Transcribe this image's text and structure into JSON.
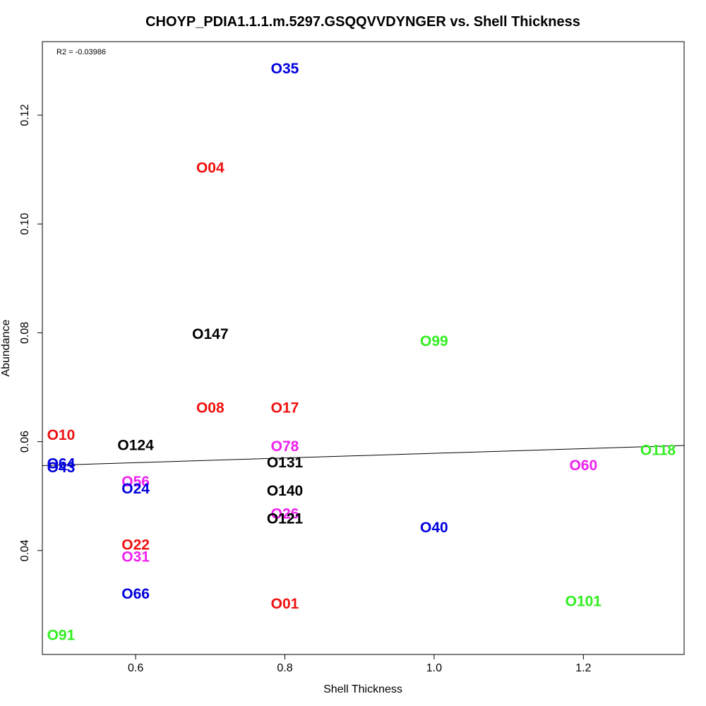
{
  "chart_data": {
    "type": "scatter",
    "title": "CHOYP_PDIA1.1.1.m.5297.GSQQVVDYNGER vs. Shell Thickness",
    "xlabel": "Shell Thickness",
    "ylabel": "Abundance",
    "annotation": "R2 = -0.03986",
    "xlim": [
      0.475,
      1.335
    ],
    "ylim": [
      0.0209,
      0.1335
    ],
    "xticks": [
      0.6,
      0.8,
      1.0,
      1.2
    ],
    "xtick_labels": [
      "0.6",
      "0.8",
      "1.0",
      "1.2"
    ],
    "yticks": [
      0.04,
      0.06,
      0.08,
      0.1,
      0.12
    ],
    "ytick_labels": [
      "0.04",
      "0.06",
      "0.08",
      "0.10",
      "0.12"
    ],
    "grid": false,
    "regression_line": {
      "x": [
        0.475,
        1.335
      ],
      "y": [
        0.0556,
        0.0593
      ]
    },
    "points": [
      {
        "label": "O35",
        "x": 0.8,
        "y": 0.1285,
        "color": "#0000dd"
      },
      {
        "label": "O04",
        "x": 0.7,
        "y": 0.1103,
        "color": "#ee1111"
      },
      {
        "label": "O147",
        "x": 0.7,
        "y": 0.0797,
        "color": "#000000"
      },
      {
        "label": "O99",
        "x": 1.0,
        "y": 0.0784,
        "color": "#33ee22"
      },
      {
        "label": "O08",
        "x": 0.7,
        "y": 0.0662,
        "color": "#ee1111"
      },
      {
        "label": "O17",
        "x": 0.8,
        "y": 0.0662,
        "color": "#ee1111"
      },
      {
        "label": "O10",
        "x": 0.5,
        "y": 0.0612,
        "color": "#ee1111"
      },
      {
        "label": "O124",
        "x": 0.6,
        "y": 0.0593,
        "color": "#000000"
      },
      {
        "label": "O78",
        "x": 0.8,
        "y": 0.0591,
        "color": "#ee22ee"
      },
      {
        "label": "O64",
        "x": 0.5,
        "y": 0.0559,
        "color": "#0000dd"
      },
      {
        "label": "O43",
        "x": 0.5,
        "y": 0.0552,
        "color": "#0000dd"
      },
      {
        "label": "O131",
        "x": 0.8,
        "y": 0.0561,
        "color": "#000000"
      },
      {
        "label": "O118",
        "x": 1.3,
        "y": 0.0584,
        "color": "#33ee22"
      },
      {
        "label": "O60",
        "x": 1.2,
        "y": 0.0556,
        "color": "#ee22ee"
      },
      {
        "label": "O56",
        "x": 0.6,
        "y": 0.0526,
        "color": "#ee22ee"
      },
      {
        "label": "O24",
        "x": 0.6,
        "y": 0.0513,
        "color": "#0000dd"
      },
      {
        "label": "O140",
        "x": 0.8,
        "y": 0.0509,
        "color": "#000000"
      },
      {
        "label": "O26",
        "x": 0.8,
        "y": 0.0467,
        "color": "#ee22ee"
      },
      {
        "label": "O121",
        "x": 0.8,
        "y": 0.0458,
        "color": "#000000"
      },
      {
        "label": "O40",
        "x": 1.0,
        "y": 0.0442,
        "color": "#0000dd"
      },
      {
        "label": "O22",
        "x": 0.6,
        "y": 0.041,
        "color": "#ee1111"
      },
      {
        "label": "O31",
        "x": 0.6,
        "y": 0.0388,
        "color": "#ee22ee"
      },
      {
        "label": "O66",
        "x": 0.6,
        "y": 0.032,
        "color": "#0000dd"
      },
      {
        "label": "O101",
        "x": 1.2,
        "y": 0.0306,
        "color": "#33ee22"
      },
      {
        "label": "O01",
        "x": 0.8,
        "y": 0.0302,
        "color": "#ee1111"
      },
      {
        "label": "O91",
        "x": 0.5,
        "y": 0.0244,
        "color": "#33ee22"
      }
    ]
  }
}
